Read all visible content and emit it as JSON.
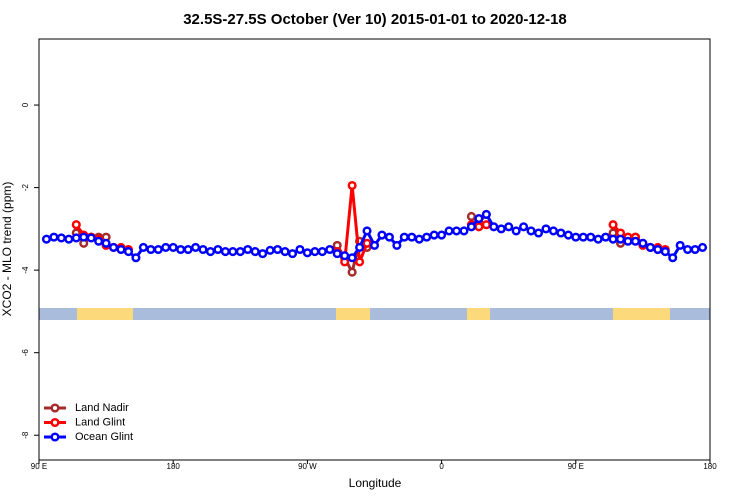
{
  "chart_data": {
    "type": "line",
    "title": "32.5S-27.5S October (Ver 10)   2015-01-01 to 2020-12-18",
    "x_label": "Longitude",
    "y_label": "XCO2 - MLO trend (ppm)",
    "xlim": [
      90,
      540
    ],
    "xticks": [
      {
        "value": 90,
        "label": "90 E"
      },
      {
        "value": 180,
        "label": "180"
      },
      {
        "value": 270,
        "label": "90 W"
      },
      {
        "value": 360,
        "label": "0"
      },
      {
        "value": 450,
        "label": "90 E"
      },
      {
        "value": 540,
        "label": "180"
      }
    ],
    "ylim": [
      -8.6,
      1.6
    ],
    "yticks": [
      0,
      -2,
      -4,
      -6,
      -8
    ],
    "legend": "lower left",
    "series": [
      {
        "name": "Land Nadir",
        "color": "#a52a2a",
        "x": [
          115,
          120,
          125,
          130,
          135,
          200,
          290,
          295,
          300,
          305,
          310,
          350,
          380,
          385,
          390,
          450,
          475,
          480,
          485,
          490,
          495,
          500,
          505
        ],
        "values": [
          -3.1,
          -3.35,
          -3.2,
          -3.2,
          -3.2,
          null,
          -3.4,
          -3.7,
          -4.05,
          -3.3,
          -3.45,
          null,
          -2.7,
          -2.85,
          -2.65,
          null,
          -3.1,
          -3.35,
          -3.2,
          -3.2,
          -3.35,
          -3.45,
          -3.5
        ]
      },
      {
        "name": "Land Glint",
        "color": "#ff0000",
        "x": [
          115,
          120,
          125,
          130,
          135,
          140,
          145,
          150,
          200,
          290,
          295,
          300,
          305,
          310,
          350,
          380,
          385,
          390,
          450,
          475,
          480,
          485,
          490,
          495,
          500,
          505,
          510
        ],
        "values": [
          -2.9,
          -3.15,
          -3.2,
          -3.25,
          -3.4,
          -3.45,
          -3.45,
          -3.5,
          null,
          -3.55,
          -3.8,
          -1.95,
          -3.8,
          -3.35,
          null,
          -2.9,
          -2.95,
          -2.9,
          null,
          -2.9,
          -3.1,
          -3.2,
          -3.2,
          -3.4,
          -3.45,
          -3.45,
          -3.5
        ]
      },
      {
        "name": "Ocean Glint",
        "color": "#0000ff",
        "x": [
          95,
          100,
          105,
          110,
          115,
          120,
          125,
          130,
          135,
          140,
          145,
          150,
          155,
          160,
          165,
          170,
          175,
          180,
          185,
          190,
          195,
          200,
          205,
          210,
          215,
          220,
          225,
          230,
          235,
          240,
          245,
          250,
          255,
          260,
          265,
          270,
          275,
          280,
          285,
          290,
          295,
          300,
          305,
          310,
          315,
          320,
          325,
          330,
          335,
          340,
          345,
          350,
          355,
          360,
          365,
          370,
          375,
          380,
          385,
          390,
          395,
          400,
          405,
          410,
          415,
          420,
          425,
          430,
          435,
          440,
          445,
          450,
          455,
          460,
          465,
          470,
          475,
          480,
          485,
          490,
          495,
          500,
          505,
          510,
          515,
          520,
          525,
          530,
          535
        ],
        "values": [
          -3.25,
          -3.2,
          -3.22,
          -3.25,
          -3.22,
          -3.2,
          -3.22,
          -3.3,
          -3.35,
          -3.45,
          -3.5,
          -3.55,
          -3.7,
          -3.45,
          -3.5,
          -3.5,
          -3.45,
          -3.45,
          -3.5,
          -3.5,
          -3.45,
          -3.5,
          -3.55,
          -3.5,
          -3.55,
          -3.55,
          -3.55,
          -3.5,
          -3.55,
          -3.6,
          -3.52,
          -3.5,
          -3.55,
          -3.6,
          -3.5,
          -3.58,
          -3.55,
          -3.55,
          -3.5,
          -3.6,
          -3.65,
          -3.7,
          -3.45,
          -3.05,
          -3.4,
          -3.15,
          -3.2,
          -3.4,
          -3.2,
          -3.2,
          -3.25,
          -3.2,
          -3.15,
          -3.15,
          -3.05,
          -3.05,
          -3.05,
          -2.95,
          -2.75,
          -2.65,
          -2.95,
          -3.0,
          -2.95,
          -3.05,
          -2.95,
          -3.05,
          -3.1,
          -3.0,
          -3.05,
          -3.1,
          -3.15,
          -3.2,
          -3.2,
          -3.2,
          -3.25,
          -3.2,
          -3.25,
          -3.25,
          -3.3,
          -3.3,
          -3.35,
          -3.45,
          -3.5,
          -3.55,
          -3.7,
          -3.4,
          -3.5,
          -3.5,
          -3.45
        ]
      }
    ]
  }
}
